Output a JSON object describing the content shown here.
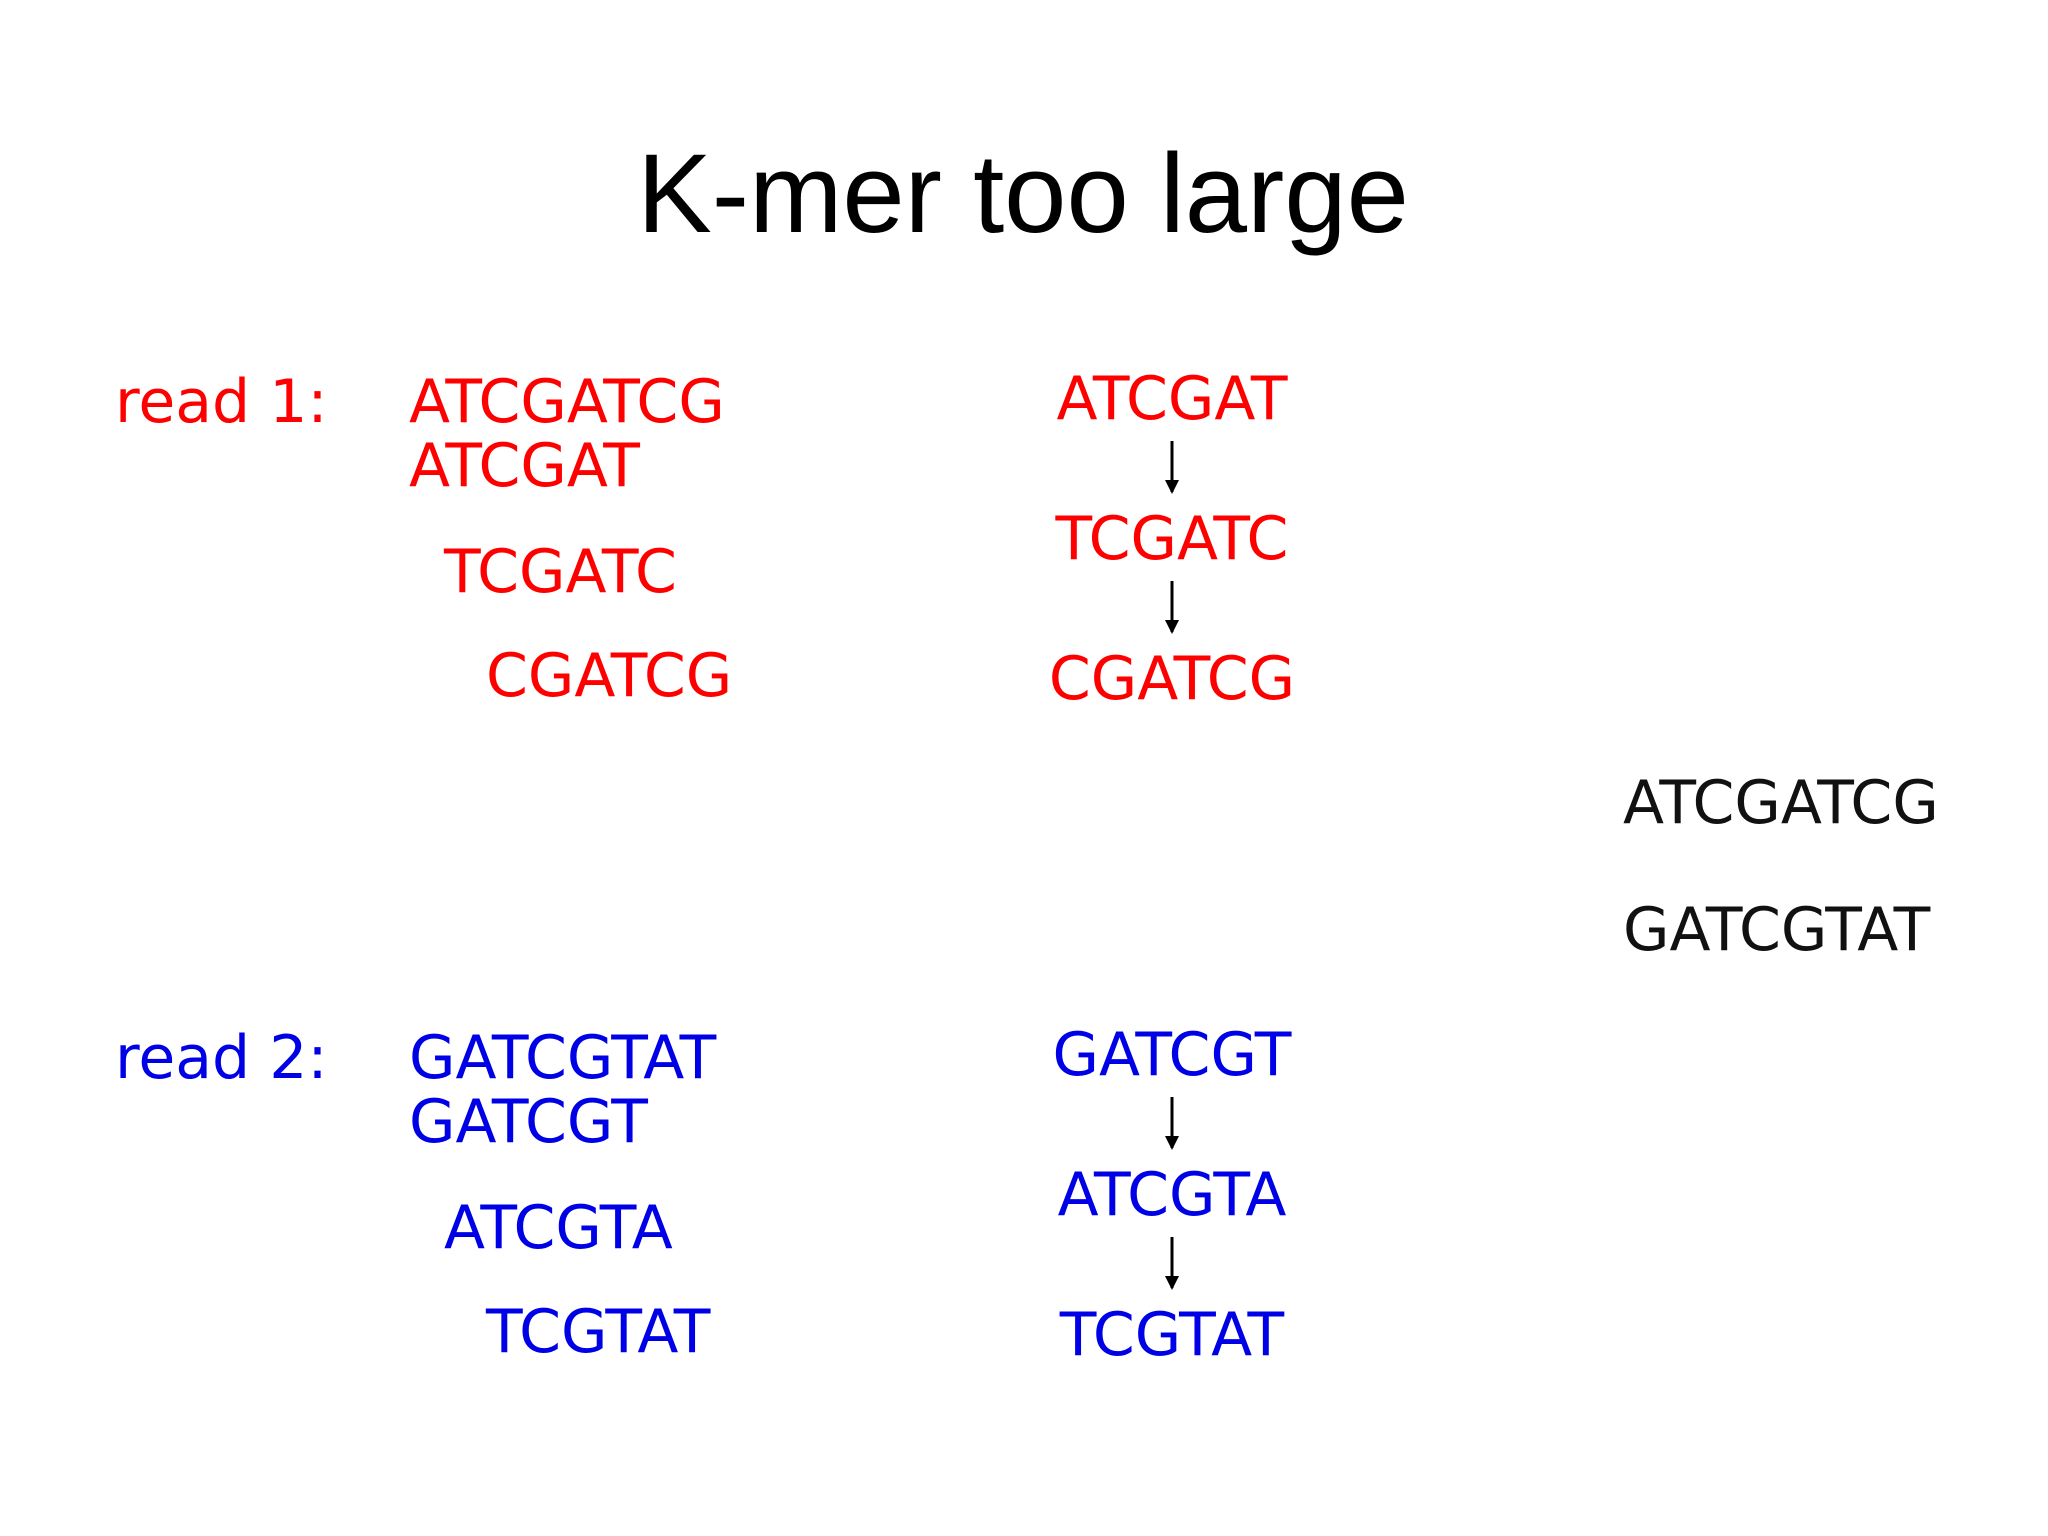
{
  "title": "K-mer too large",
  "reads": [
    {
      "label": "read 1:",
      "sequence": "ATCGATCG",
      "kmers": [
        "ATCGAT",
        "TCGATC",
        "CGATCG"
      ],
      "graph": [
        "ATCGAT",
        "TCGATC",
        "CGATCG"
      ]
    },
    {
      "label": "read 2:",
      "sequence": "GATCGTAT",
      "kmers": [
        "GATCGT",
        "ATCGTA",
        "TCGTAT"
      ],
      "graph": [
        "GATCGT",
        "ATCGTA",
        "TCGTAT"
      ]
    }
  ],
  "contigs": [
    "ATCGATCG",
    "GATCGTAT"
  ]
}
